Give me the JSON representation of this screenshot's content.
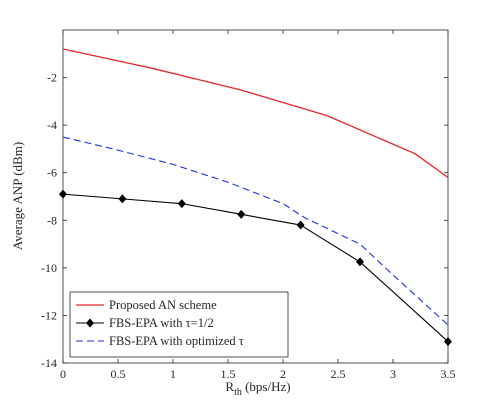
{
  "chart_data": {
    "type": "line",
    "title": "",
    "xlabel": "R",
    "xlabel_sub": "th",
    "xlabel_unit": " (bps/Hz)",
    "ylabel": "Average ANP (dBm)",
    "xlim": [
      0,
      3.5
    ],
    "ylim": [
      -14,
      0
    ],
    "x_ticks": [
      0,
      0.5,
      1,
      1.5,
      2,
      2.5,
      3,
      3.5
    ],
    "x_tick_labels": [
      "0",
      "0.5",
      "1",
      "1.5",
      "2",
      "2.5",
      "3",
      "3.5"
    ],
    "y_ticks": [
      -14,
      -12,
      -10,
      -8,
      -6,
      -4,
      -2
    ],
    "y_tick_labels": [
      "-14",
      "-12",
      "-10",
      "-8",
      "-6",
      "-4",
      "-2"
    ],
    "grid": false,
    "legend_position": "bottom-left",
    "series": [
      {
        "name": "Proposed AN scheme",
        "color": "#e8262a",
        "dash": "solid",
        "marker": "none",
        "x": [
          0,
          0.4,
          0.8,
          1.2,
          1.6,
          2.0,
          2.4,
          2.8,
          3.2,
          3.5
        ],
        "y": [
          -0.8,
          -1.2,
          -1.6,
          -2.05,
          -2.5,
          -3.05,
          -3.6,
          -4.4,
          -5.2,
          -6.2
        ]
      },
      {
        "name": "FBS-EPA with τ=1/2",
        "color": "#000000",
        "dash": "solid",
        "marker": "diamond",
        "x": [
          0,
          0.54,
          1.08,
          1.62,
          2.16,
          2.7,
          3.5
        ],
        "y": [
          -6.9,
          -7.1,
          -7.3,
          -7.75,
          -8.2,
          -9.75,
          -13.1
        ]
      },
      {
        "name": "FBS-EPA with optimized τ",
        "color": "#1f2fe8",
        "dash": "dashed",
        "marker": "none",
        "x": [
          0,
          0.5,
          1.0,
          1.5,
          2.0,
          2.2,
          2.7,
          3.0,
          3.5
        ],
        "y": [
          -4.5,
          -5.05,
          -5.65,
          -6.4,
          -7.3,
          -7.9,
          -9.0,
          -10.3,
          -12.4
        ]
      }
    ]
  }
}
